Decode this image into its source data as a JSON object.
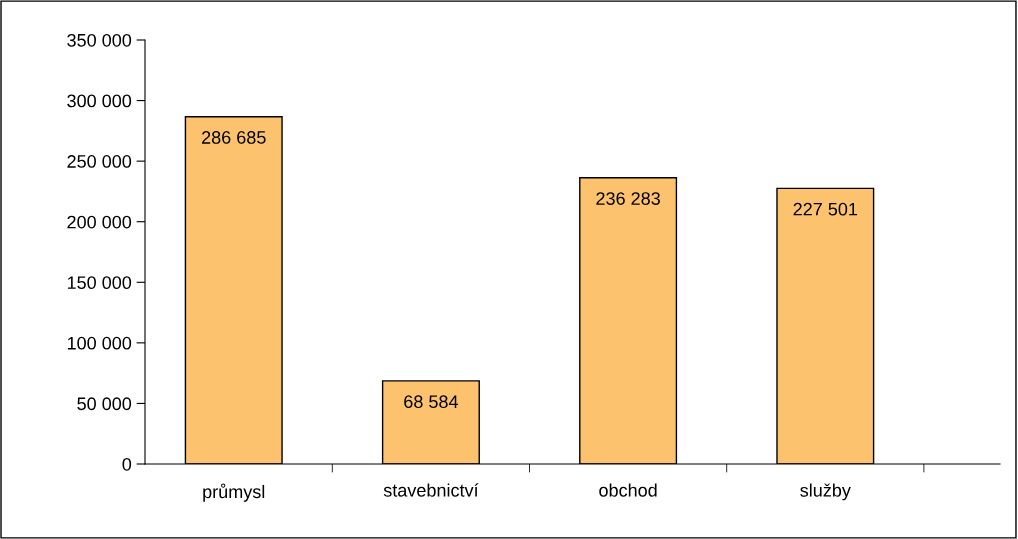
{
  "chart_data": {
    "type": "bar",
    "categories": [
      "průmysl",
      "stavebnictví",
      "obchod",
      "služby"
    ],
    "values": [
      286685,
      68584,
      236283,
      227501
    ],
    "value_labels": [
      "286 685",
      "68 584",
      "236 283",
      "227 501"
    ],
    "color": "#fdc26e",
    "ylim": [
      0,
      350000
    ],
    "yticks": [
      {
        "value": 0,
        "label": "0"
      },
      {
        "value": 50000,
        "label": "50 000"
      },
      {
        "value": 100000,
        "label": "100 000"
      },
      {
        "value": 150000,
        "label": "150 000"
      },
      {
        "value": 200000,
        "label": "200 000"
      },
      {
        "value": 250000,
        "label": "250 000"
      },
      {
        "value": 300000,
        "label": "300 000"
      },
      {
        "value": 350000,
        "label": "350 000"
      }
    ]
  }
}
